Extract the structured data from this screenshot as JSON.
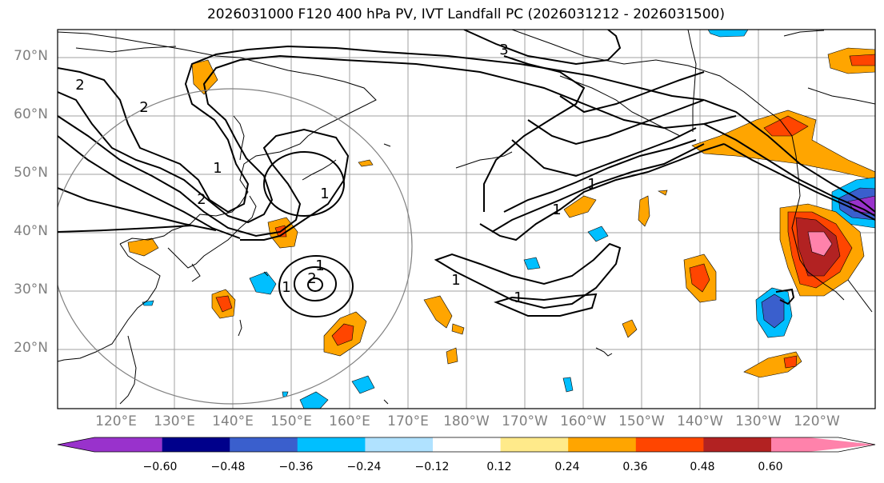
{
  "title": "2026031000 F120 400 hPa PV, IVT Landfall PC (2026031212 - 2026031500)",
  "lat_labels": [
    "70°N",
    "60°N",
    "50°N",
    "40°N",
    "30°N",
    "20°N"
  ],
  "lon_labels": [
    "120°E",
    "130°E",
    "140°E",
    "150°E",
    "160°E",
    "170°E",
    "180°W",
    "170°W",
    "160°W",
    "150°W",
    "140°W",
    "130°W",
    "120°W"
  ],
  "contour_labels": [
    "2",
    "2",
    "2",
    "3",
    "1",
    "1",
    "1",
    "1",
    "2",
    "1",
    "1",
    "1",
    "1"
  ],
  "colorbar": {
    "ticks": [
      "−0.60",
      "−0.48",
      "−0.36",
      "−0.24",
      "−0.12",
      "0.12",
      "0.24",
      "0.36",
      "0.48",
      "0.60"
    ],
    "colors": [
      "#9932cc",
      "#00008b",
      "#3a5fcd",
      "#00bfff",
      "#b0e2ff",
      "#ffffff",
      "#ffea8a",
      "#ffa500",
      "#ff4500",
      "#b22222",
      "#ff82ab"
    ]
  }
}
